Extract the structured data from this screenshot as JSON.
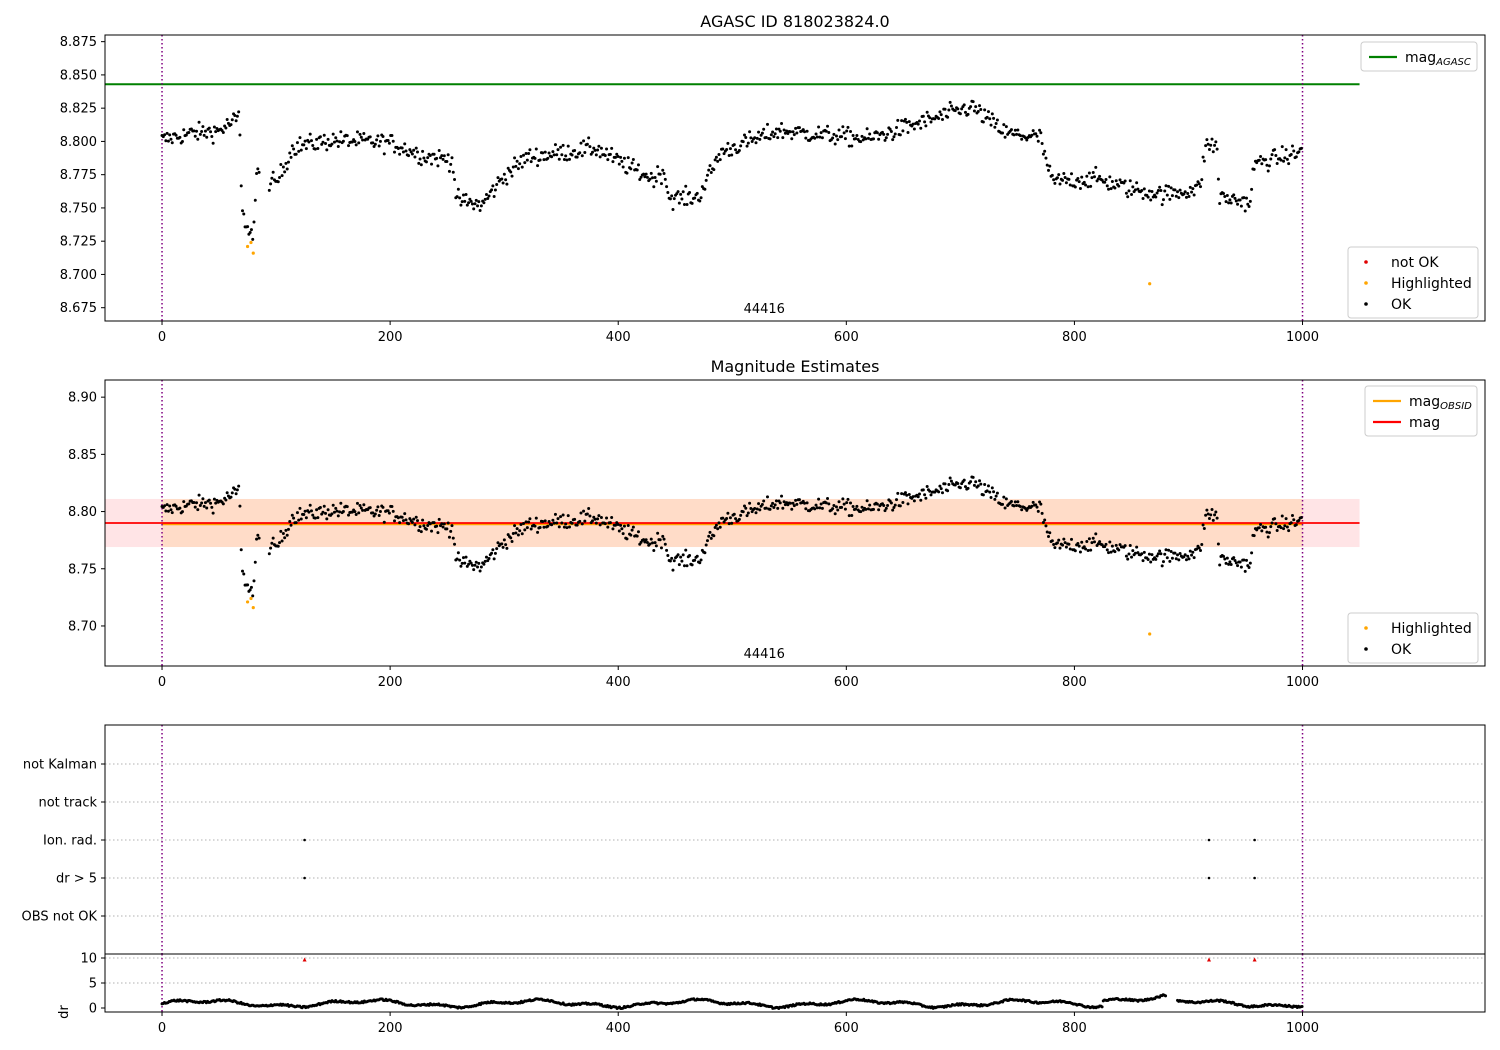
{
  "chart_data": [
    {
      "type": "scatter",
      "title": "AGASC ID 818023824.0",
      "xlim": [
        -50,
        1160
      ],
      "ylim": [
        8.665,
        8.88
      ],
      "xticks": [
        0,
        200,
        400,
        600,
        800,
        1000
      ],
      "yticks": [
        8.675,
        8.7,
        8.725,
        8.75,
        8.775,
        8.8,
        8.825,
        8.85,
        8.875
      ],
      "ytick_decimals": 3,
      "obsid_label": "44416",
      "obsid_label_x": 500,
      "vlines_x": [
        0,
        1000
      ],
      "ref_line": {
        "name": "mag",
        "subscript": "AGASC",
        "value": 8.843,
        "x_range": [
          -50,
          1050
        ],
        "color": "#008000"
      },
      "highlighted": {
        "name": "Highlighted",
        "color": "#ffa500",
        "points": [
          [
            75,
            8.721
          ],
          [
            78,
            8.724
          ],
          [
            80,
            8.716
          ],
          [
            866,
            8.693
          ]
        ]
      },
      "legend_top": [
        {
          "label": "mag",
          "sub": "AGASC",
          "kind": "line",
          "color": "#008000"
        }
      ],
      "legend_bottom": [
        {
          "label": "not OK",
          "kind": "dot",
          "color": "#e00000"
        },
        {
          "label": "Highlighted",
          "kind": "dot",
          "color": "#ffa500"
        },
        {
          "label": "OK",
          "kind": "dot",
          "color": "#000000"
        }
      ]
    },
    {
      "type": "scatter",
      "title": "Magnitude Estimates",
      "xlim": [
        -50,
        1160
      ],
      "ylim": [
        8.665,
        8.915
      ],
      "xticks": [
        0,
        200,
        400,
        600,
        800,
        1000
      ],
      "yticks": [
        8.7,
        8.75,
        8.8,
        8.85,
        8.9
      ],
      "ytick_decimals": 2,
      "obsid_label": "44416",
      "obsid_label_x": 500,
      "vlines_x": [
        0,
        1000
      ],
      "band_obsid": {
        "low": 8.769,
        "high": 8.811,
        "x_range": [
          0,
          1000
        ],
        "color": "#ffdcc8"
      },
      "band_mag": {
        "low": 8.769,
        "high": 8.811,
        "x_range": [
          -50,
          1050
        ],
        "color": "#ffe4e6"
      },
      "mag_obsid": {
        "value": 8.789,
        "x_range": [
          0,
          1000
        ],
        "color": "#ffa500"
      },
      "mag": {
        "value": 8.79,
        "x_range": [
          -50,
          1050
        ],
        "color": "#ff0000"
      },
      "highlighted": {
        "name": "Highlighted",
        "color": "#ffa500",
        "points": [
          [
            75,
            8.721
          ],
          [
            78,
            8.724
          ],
          [
            80,
            8.716
          ],
          [
            866,
            8.693
          ]
        ]
      },
      "legend_top": [
        {
          "label": "mag",
          "sub": "OBSID",
          "kind": "line",
          "color": "#ffa500"
        },
        {
          "label": "mag",
          "sub": "",
          "kind": "line",
          "color": "#ff0000"
        }
      ],
      "legend_bottom": [
        {
          "label": "Highlighted",
          "kind": "dot",
          "color": "#ffa500"
        },
        {
          "label": "OK",
          "kind": "dot",
          "color": "#000000"
        }
      ]
    },
    {
      "type": "scatter",
      "xlim": [
        -50,
        1160
      ],
      "xticks": [
        0,
        200,
        400,
        600,
        800,
        1000
      ],
      "vlines_x": [
        0,
        1000
      ],
      "flag_labels": [
        "OBS not OK",
        "dr > 5",
        "Ion. rad.",
        "not track",
        "not Kalman"
      ],
      "flag_points": [
        [
          125,
          2
        ],
        [
          918,
          2
        ],
        [
          958,
          2
        ],
        [
          125,
          1
        ],
        [
          918,
          1
        ],
        [
          958,
          1
        ]
      ],
      "dr": {
        "ylabel": "dr",
        "ylim": [
          -0.8,
          10.8
        ],
        "yticks": [
          0,
          5,
          10
        ],
        "gridlines": [
          5,
          10
        ],
        "clipped_marker_y": 9.7,
        "clipped_x": [
          125,
          918,
          958
        ],
        "clipped_color": "#e00000"
      }
    }
  ]
}
